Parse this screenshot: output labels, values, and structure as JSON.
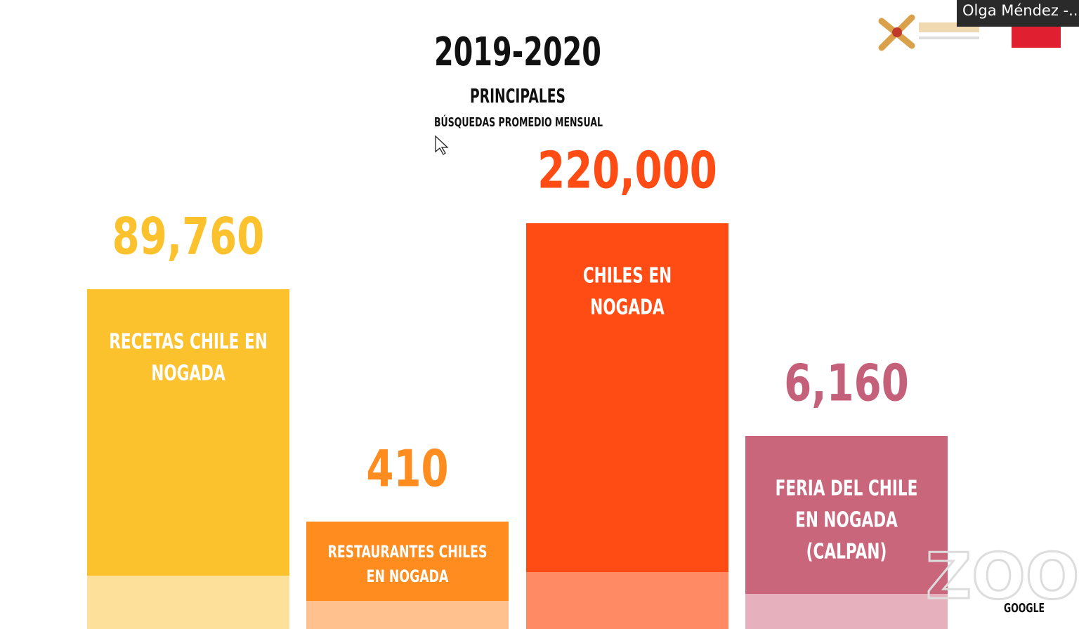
{
  "slide": {
    "title": "2019-2020",
    "subtitle": "PRINCIPALES",
    "caption": "BÚSQUEDAS PROMEDIO MENSUAL",
    "source": "GOOGLE",
    "items": [
      {
        "value": "89,760",
        "label": [
          "RECETAS CHILE EN",
          "NOGADA"
        ]
      },
      {
        "value": "410",
        "label": [
          "RESTAURANTES CHILES",
          "EN NOGADA"
        ]
      },
      {
        "value": "220,000",
        "label": [
          "CHILES EN",
          "NOGADA"
        ]
      },
      {
        "value": "6,160",
        "label": [
          "FERIA DEL CHILE",
          "EN NOGADA",
          "(CALPAN)"
        ]
      }
    ]
  },
  "overlay": {
    "participant": "Olga Méndez -.."
  }
}
